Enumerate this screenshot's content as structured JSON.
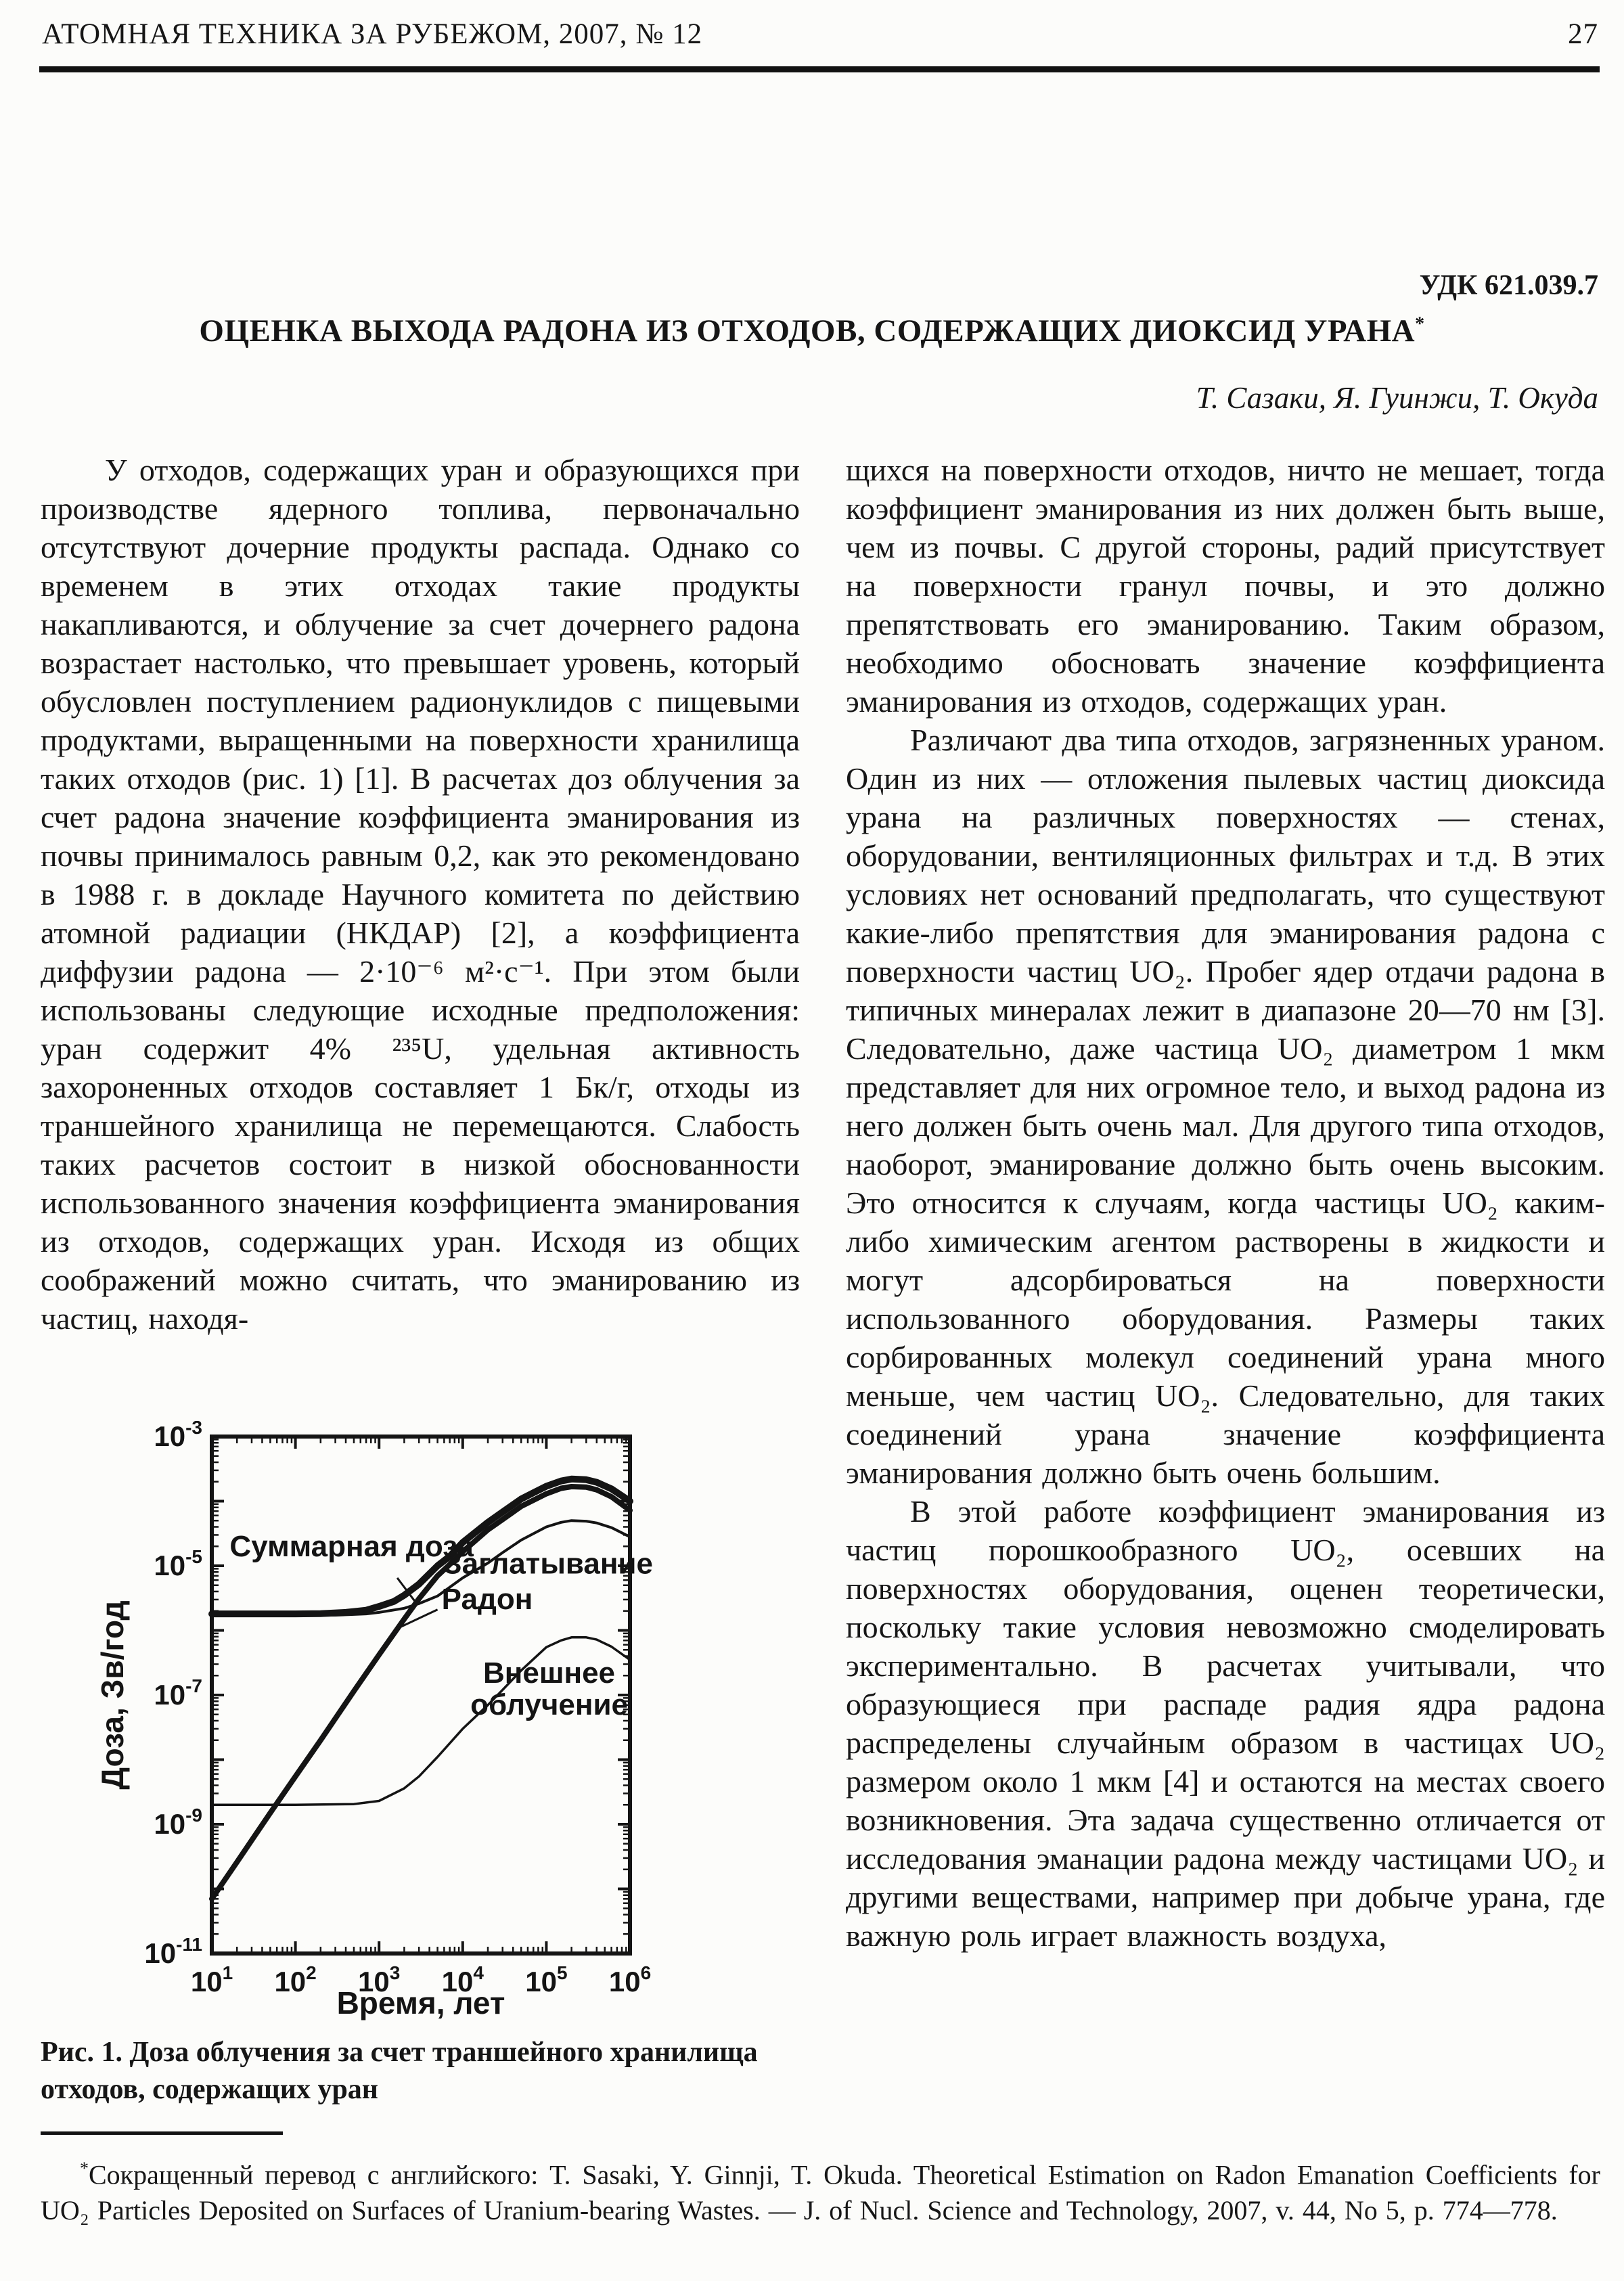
{
  "header": {
    "journal": "АТОМНАЯ ТЕХНИКА ЗА РУБЕЖОМ, 2007, № 12",
    "page_number": "27"
  },
  "article": {
    "udc": "УДК 621.039.7",
    "title": "ОЦЕНКА ВЫХОДА РАДОНА ИЗ ОТХОДОВ, СОДЕРЖАЩИХ ДИОКСИД УРАНА",
    "title_mark": "*",
    "authors": "Т. Сазаки, Я. Гуинжи, Т. Окуда"
  },
  "columns": {
    "left": [
      {
        "text": "У отходов, содержащих уран и образующихся при производстве ядерного топлива, первоначально отсутствуют дочерние продукты распада. Однако со временем в этих отходах такие продукты накапливаются, и облучение за счет дочернего радона возрастает настолько, что превышает уровень, который обусловлен поступлением радионуклидов с пищевыми продуктами, выращенными на поверхности хранилища таких отходов (рис. 1) [1]. В расчетах доз облучения за счет радона значение коэффициента эманирования из почвы принималось равным 0,2, как это рекомендовано в 1988 г. в докладе Научного комитета по действию атомной радиации (НКДАР) [2], а коэффициента диффузии радона — 2·10⁻⁶ м²·с⁻¹. При этом были использованы следующие исходные предположения: уран содержит 4% ²³⁵U, удельная активность захороненных отходов составляет 1 Бк/г, отходы из траншейного хранилища не перемещаются. Слабость таких расчетов состоит в низкой обоснованности использованного значения коэффициента эманирования из отходов, содержащих уран. Исходя из общих соображений можно считать, что эманированию из частиц, находя-"
      }
    ],
    "right": [
      {
        "text": "щихся на поверхности отходов, ничто не мешает, тогда коэффициент эманирования из них должен быть выше, чем из почвы. С другой стороны, радий присутствует на поверхности гранул почвы, и это должно препятствовать его эманированию. Таким образом, необходимо обосновать значение коэффициента эманирования из отходов, содержащих уран."
      },
      {
        "text": "Различают два типа отходов, загрязненных ураном. Один из них — отложения пылевых частиц диоксида урана на различных поверхностях — стенах, оборудовании, вентиляционных фильтрах и т.д. В этих условиях нет оснований предполагать, что существуют какие-либо препятствия для эманирования радона с поверхности частиц UO₂. Пробег ядер отдачи радона в типичных минералах лежит в диапазоне 20—70 нм [3]. Следовательно, даже частица UO₂ диаметром 1 мкм представляет для них огромное тело, и выход радона из него должен быть очень мал. Для другого типа отходов, наоборот, эманирование должно быть очень высоким. Это относится к случаям, когда частицы UO₂ каким-либо химическим агентом растворены в жидкости и могут адсорбироваться на поверхности использованного оборудования. Размеры таких сорбированных молекул соединений урана много меньше, чем частиц UO₂. Следовательно, для таких соединений урана значение коэффициента эманирования должно быть очень большим."
      },
      {
        "text": "В этой работе коэффициент эманирования из частиц порошкообразного UO₂, осевших на поверхностях оборудования, оценен теоретически, поскольку такие условия невозможно смоделировать экспериментально. В расчетах учитывали, что образующиеся при распаде радия ядра радона распределены случайным образом в частицах UO₂ размером около 1 мкм [4] и остаются на местах своего возникновения. Эта задача существенно отличается от исследования эманации радона между частицами UO₂ и другими веществами, например при добыче урана, где важную роль играет влажность воздуха,"
      }
    ]
  },
  "figure": {
    "caption": "Рис. 1. Доза облучения за счет траншейного хранилища отходов, содержащих уран"
  },
  "footnote": {
    "mark": "*",
    "text": "Сокращенный перевод с английского: T. Sasaki, Y. Ginnji, T. Okuda. Theoretical Estimation on Radon Emanation Coefficients for UO₂ Particles Deposited on Surfaces of Uranium-bearing Wastes. — J. of Nucl. Science and Technology, 2007, v. 44, No 5, p. 774—778."
  },
  "chart_data": {
    "type": "line",
    "title": "",
    "xlabel": "Время, лет",
    "ylabel": "Доза, Зв/год",
    "x_scale": "log",
    "y_scale": "log",
    "xlim": [
      10,
      1000000
    ],
    "ylim": [
      1e-11,
      0.001
    ],
    "x_tick_exponents": [
      1,
      2,
      3,
      4,
      5,
      6
    ],
    "y_tick_exponents": [
      -3,
      -5,
      -7,
      -9,
      -11
    ],
    "grid": false,
    "legend": "inline-annotations",
    "series": [
      {
        "name": "Суммарная доза",
        "line_weight": 10,
        "points": [
          [
            10,
            1.8e-06
          ],
          [
            50,
            1.8e-06
          ],
          [
            100,
            1.8e-06
          ],
          [
            200,
            1.82e-06
          ],
          [
            400,
            1.9e-06
          ],
          [
            700,
            2.05e-06
          ],
          [
            1000,
            2.35e-06
          ],
          [
            1500,
            2.8e-06
          ],
          [
            2000,
            3.5e-06
          ],
          [
            3000,
            5.2e-06
          ],
          [
            5000,
            1e-05
          ],
          [
            7000,
            1.4e-05
          ],
          [
            10000,
            2.3e-05
          ],
          [
            20000,
            4.7e-05
          ],
          [
            30000,
            6.8e-05
          ],
          [
            50000,
            0.000108
          ],
          [
            70000,
            0.000135
          ],
          [
            100000,
            0.00017
          ],
          [
            150000,
            0.000205
          ],
          [
            200000,
            0.00022
          ],
          [
            300000,
            0.000215
          ],
          [
            400000,
            0.000196
          ],
          [
            600000,
            0.000155
          ],
          [
            1000000,
            0.0001
          ]
        ]
      },
      {
        "name": "Радон",
        "line_weight": 8,
        "points": [
          [
            10,
            7e-11
          ],
          [
            20,
            2.6e-10
          ],
          [
            50,
            1.5e-09
          ],
          [
            100,
            5.5e-09
          ],
          [
            200,
            2e-08
          ],
          [
            500,
            1.15e-07
          ],
          [
            1000,
            4.2e-07
          ],
          [
            2000,
            1.5e-06
          ],
          [
            3000,
            3.1e-06
          ],
          [
            5000,
            7e-06
          ],
          [
            7000,
            1.05e-05
          ],
          [
            10000,
            1.65e-05
          ],
          [
            20000,
            3.6e-05
          ],
          [
            30000,
            5.2e-05
          ],
          [
            50000,
            8.3e-05
          ],
          [
            100000,
            0.00013
          ],
          [
            150000,
            0.000158
          ],
          [
            200000,
            0.000168
          ],
          [
            300000,
            0.000165
          ],
          [
            400000,
            0.00015
          ],
          [
            600000,
            0.000117
          ],
          [
            1000000,
            7.2e-05
          ]
        ]
      },
      {
        "name": "Заглатывание",
        "line_weight": 4,
        "points": [
          [
            10,
            1.7e-06
          ],
          [
            100,
            1.7e-06
          ],
          [
            300,
            1.72e-06
          ],
          [
            700,
            1.8e-06
          ],
          [
            1000,
            1.9e-06
          ],
          [
            2000,
            2.2e-06
          ],
          [
            3000,
            2.6e-06
          ],
          [
            5000,
            3.4e-06
          ],
          [
            10000,
            6.5e-06
          ],
          [
            20000,
            1.1e-05
          ],
          [
            30000,
            1.6e-05
          ],
          [
            50000,
            2.5e-05
          ],
          [
            100000,
            4e-05
          ],
          [
            150000,
            4.7e-05
          ],
          [
            200000,
            5e-05
          ],
          [
            300000,
            4.9e-05
          ],
          [
            400000,
            4.6e-05
          ],
          [
            600000,
            3.9e-05
          ],
          [
            1000000,
            2.8e-05
          ]
        ]
      },
      {
        "name": "Внешнее облучение",
        "line_weight": 3.5,
        "points": [
          [
            10,
            2e-09
          ],
          [
            100,
            2e-09
          ],
          [
            500,
            2.05e-09
          ],
          [
            1000,
            2.3e-09
          ],
          [
            2000,
            3.6e-09
          ],
          [
            3000,
            5.5e-09
          ],
          [
            5000,
            1.1e-08
          ],
          [
            10000,
            3e-08
          ],
          [
            20000,
            7e-08
          ],
          [
            30000,
            1.2e-07
          ],
          [
            50000,
            2.4e-07
          ],
          [
            100000,
            5.5e-07
          ],
          [
            150000,
            7e-07
          ],
          [
            200000,
            7.8e-07
          ],
          [
            300000,
            7.8e-07
          ],
          [
            400000,
            7.2e-07
          ],
          [
            600000,
            5.6e-07
          ],
          [
            1000000,
            3.5e-07
          ]
        ]
      }
    ],
    "annotations": [
      {
        "text": "Суммарная доза",
        "t": 470,
        "dose": 1.4e-05,
        "anchor": "middle",
        "leader": [
          [
            1650,
            6.5e-06
          ],
          [
            2750,
            2.7e-06
          ]
        ]
      },
      {
        "text": "Заглатывание",
        "t": 105000,
        "dose": 7.6e-06,
        "anchor": "middle"
      },
      {
        "text": "Радон",
        "t": 5600,
        "dose": 2.15e-06,
        "anchor": "start",
        "leader": [
          [
            5000,
            2.1e-06
          ],
          [
            1600,
            1.05e-06
          ]
        ]
      },
      {
        "text": "Внешнее\nоблучение",
        "t": 108000,
        "dose": 1.55e-07,
        "anchor": "middle"
      }
    ]
  }
}
